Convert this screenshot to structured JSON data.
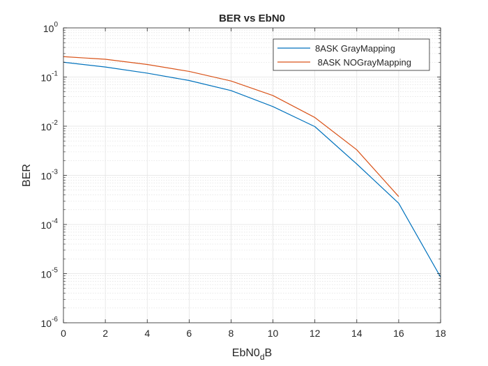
{
  "chart_data": {
    "type": "line",
    "title": "BER vs EbN0",
    "xlabel": {
      "base": "EbN0",
      "subscript": "d",
      "tail": "B"
    },
    "ylabel": "BER",
    "xlim": [
      0,
      18
    ],
    "ylim": [
      1e-06,
      1
    ],
    "yscale": "log",
    "grid": true,
    "minor_grid": true,
    "legend_position": "top-right",
    "x_ticks": [
      0,
      2,
      4,
      6,
      8,
      10,
      12,
      14,
      16,
      18
    ],
    "y_ticks": [
      {
        "base": "10",
        "exp": "0",
        "value": 1
      },
      {
        "base": "10",
        "exp": "-1",
        "value": 0.1
      },
      {
        "base": "10",
        "exp": "-2",
        "value": 0.01
      },
      {
        "base": "10",
        "exp": "-3",
        "value": 0.001
      },
      {
        "base": "10",
        "exp": "-4",
        "value": 0.0001
      },
      {
        "base": "10",
        "exp": "-5",
        "value": 1e-05
      },
      {
        "base": "10",
        "exp": "-6",
        "value": 1e-06
      }
    ],
    "series": [
      {
        "name": "8ASK GrayMapping",
        "color": "#0072BD",
        "x": [
          0,
          2,
          4,
          6,
          8,
          10,
          12,
          14,
          16,
          18
        ],
        "y": [
          0.2,
          0.16,
          0.12,
          0.085,
          0.053,
          0.025,
          0.0098,
          0.0017,
          0.00027,
          8.5e-06
        ]
      },
      {
        "name": " 8ASK NOGrayMapping",
        "color": "#D95319",
        "x": [
          0,
          2,
          4,
          6,
          8,
          10,
          12,
          14,
          16
        ],
        "y": [
          0.26,
          0.23,
          0.18,
          0.13,
          0.083,
          0.042,
          0.015,
          0.0033,
          0.00037
        ]
      }
    ]
  }
}
